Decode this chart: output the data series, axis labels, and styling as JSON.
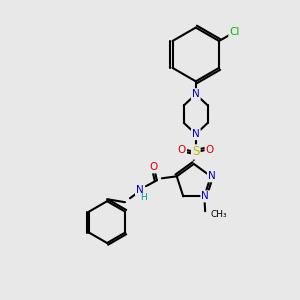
{
  "bg_color": "#e8e8e8",
  "atom_colors": {
    "C": "#000000",
    "N": "#0000cc",
    "O": "#dd0000",
    "S": "#bbbb00",
    "Cl": "#00bb00",
    "H": "#000000"
  },
  "bond_color": "#000000",
  "figsize": [
    3.0,
    3.0
  ],
  "dpi": 100
}
